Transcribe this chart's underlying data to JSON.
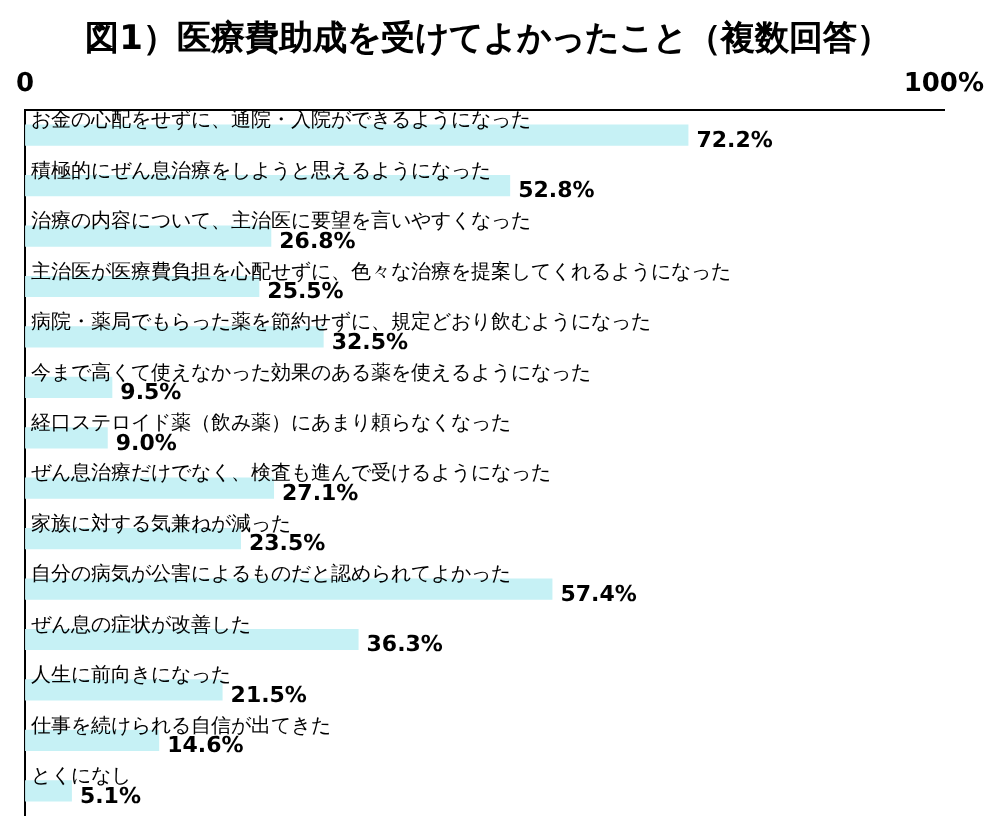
{
  "chart_data": {
    "type": "bar",
    "orientation": "horizontal",
    "title": "図1）医療費助成を受けてよかったこと（複数回答）",
    "categories": [
      "お金の心配をせずに、通院・入院ができるようになった",
      "積極的にぜん息治療をしようと思えるようになった",
      "治療の内容について、主治医に要望を言いやすくなった",
      "主治医が医療費負担を心配せずに、色々な治療を提案してくれるようになった",
      "病院・薬局でもらった薬を節約せずに、規定どおり飲むようになった",
      "今まで高くて使えなかった効果のある薬を使えるようになった",
      "経口ステロイド薬（飲み薬）にあまり頼らなくなった",
      "ぜん息治療だけでなく、検査も進んで受けるようになった",
      "家族に対する気兼ねが減った",
      "自分の病気が公害によるものだと認められてよかった",
      "ぜん息の症状が改善した",
      "人生に前向きになった",
      "仕事を続けられる自信が出てきた",
      "とくになし"
    ],
    "values": [
      72.2,
      52.8,
      26.8,
      25.5,
      32.5,
      9.5,
      9.0,
      27.1,
      23.5,
      57.4,
      36.3,
      21.5,
      14.6,
      5.1
    ],
    "value_labels": [
      "72.2%",
      "52.8%",
      "26.8%",
      "25.5%",
      "32.5%",
      "9.5%",
      "9.0%",
      "27.1%",
      "23.5%",
      "57.4%",
      "36.3%",
      "21.5%",
      "14.6%",
      "5.1%"
    ],
    "color": "#c6f1f5",
    "xlim": [
      0,
      100
    ],
    "xticks": [
      {
        "value": 0,
        "label": "0"
      },
      {
        "value": 100,
        "label": "100%"
      }
    ],
    "grid": false,
    "legend": false
  }
}
